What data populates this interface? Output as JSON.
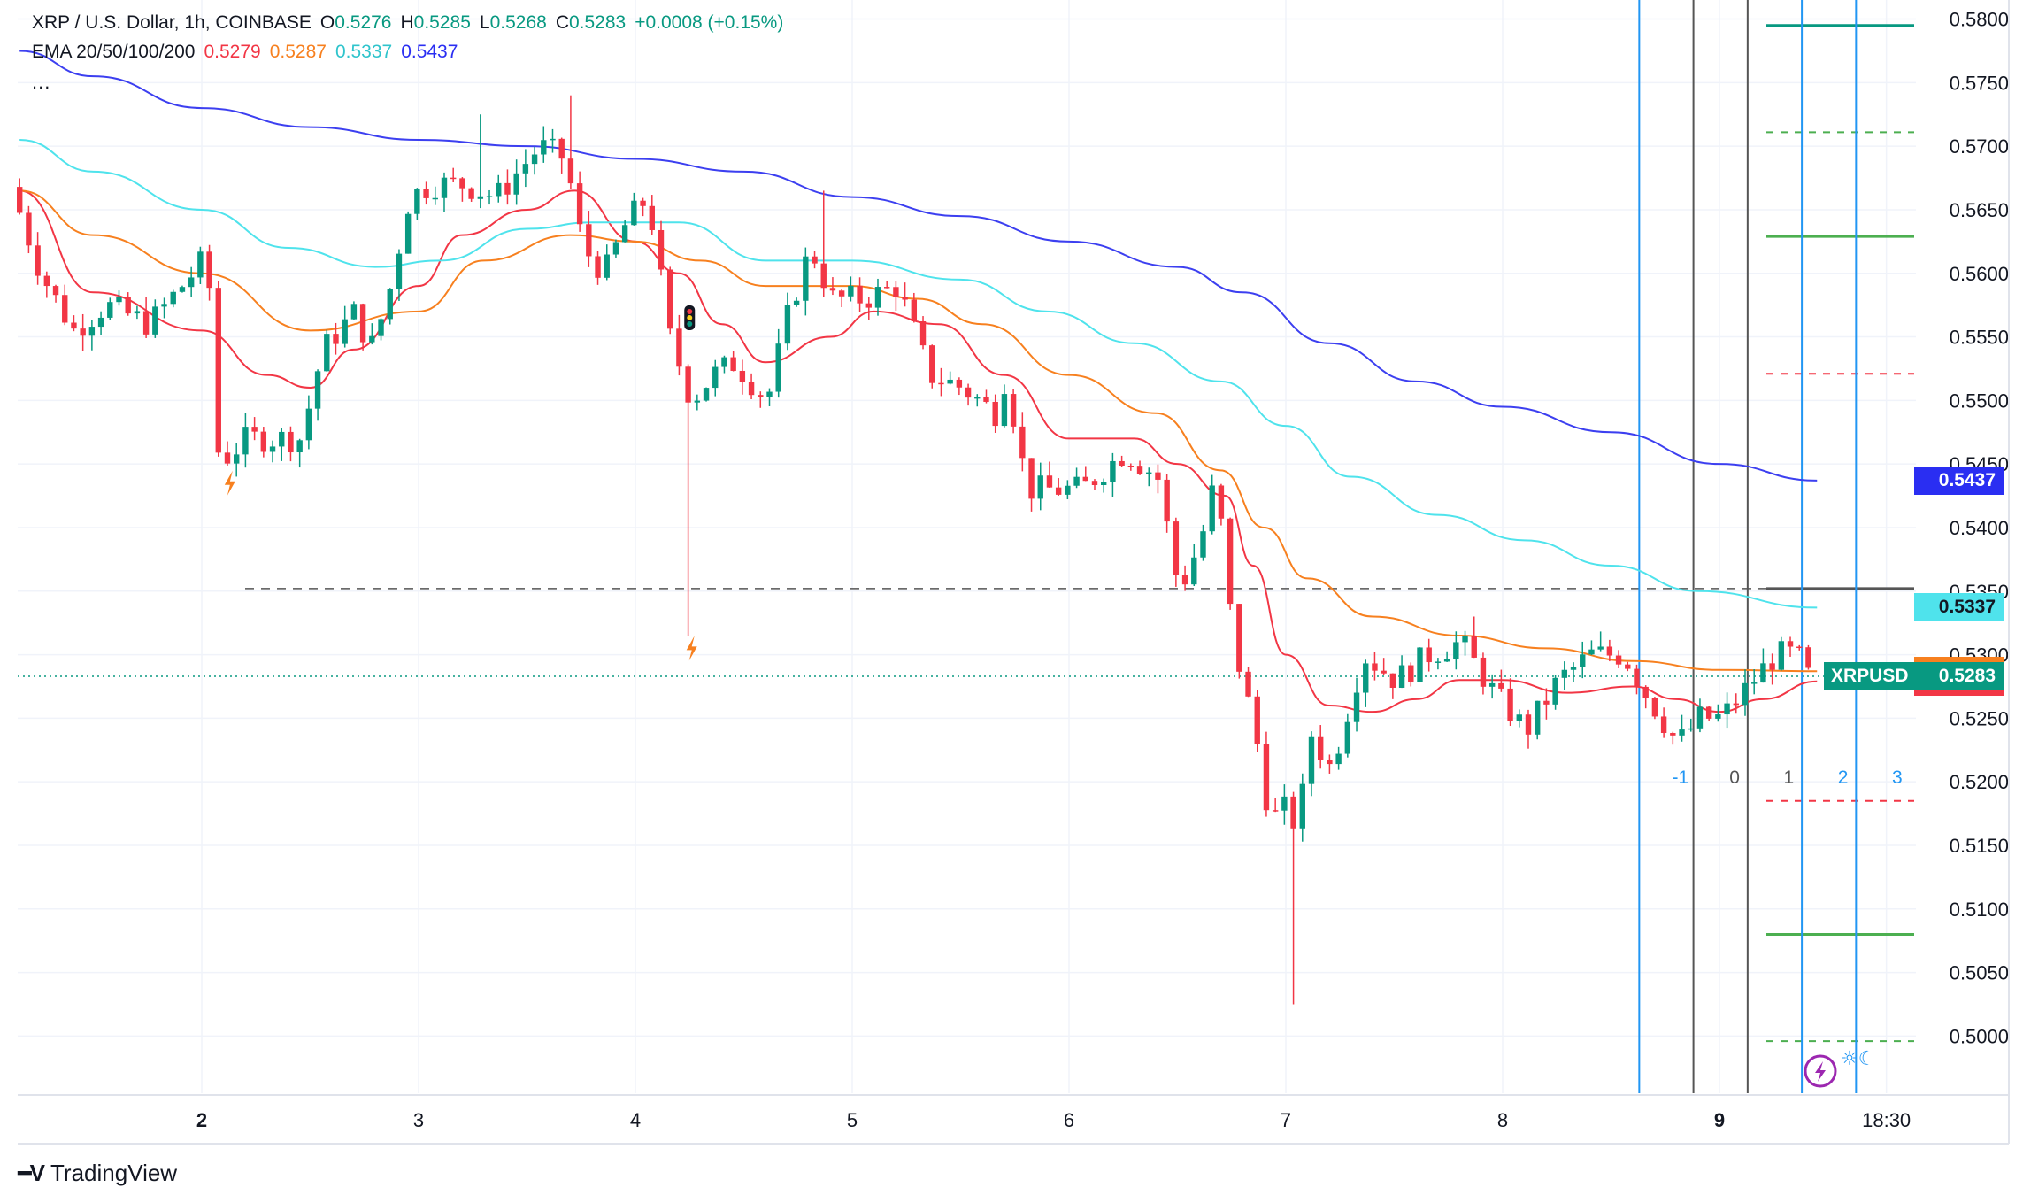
{
  "legend": {
    "title": "XRP / U.S. Dollar, 1h, COINBASE",
    "ohlc": [
      {
        "k": "O",
        "v": "0.5276"
      },
      {
        "k": "H",
        "v": "0.5285"
      },
      {
        "k": "L",
        "v": "0.5268"
      },
      {
        "k": "C",
        "v": "0.5283"
      }
    ],
    "change": "+0.0008 (+0.15%)",
    "ema_label": "EMA 20/50/100/200",
    "ema_values": [
      "0.5279",
      "0.5287",
      "0.5337",
      "0.5437"
    ],
    "more": "..."
  },
  "brand": "TradingView",
  "colors": {
    "up": "#089981",
    "down": "#f23645",
    "ema20": "#f23645",
    "ema50": "#f7801f",
    "ema100": "#4fe3ec",
    "ema200": "#3c3ff0",
    "vline_blue": "#2196f3",
    "vline_gray": "#555555",
    "level_green": "#4caf50",
    "level_red": "#f23645",
    "level_teal": "#089981"
  },
  "chart_data": {
    "type": "candlestick",
    "symbol": "XRPUSD",
    "timeframe": "1h",
    "ylim": [
      0.4955,
      0.5815
    ],
    "y_ticks": [
      "0.5800",
      "0.5750",
      "0.5700",
      "0.5650",
      "0.5600",
      "0.5550",
      "0.5500",
      "0.5450",
      "0.5400",
      "0.5350",
      "0.5300",
      "0.5250",
      "0.5200",
      "0.5150",
      "0.5100",
      "0.5050",
      "0.5000"
    ],
    "x_ticks": [
      {
        "label": "2",
        "day": 2,
        "bold": true
      },
      {
        "label": "3",
        "day": 3
      },
      {
        "label": "4",
        "day": 4
      },
      {
        "label": "5",
        "day": 5
      },
      {
        "label": "6",
        "day": 6
      },
      {
        "label": "7",
        "day": 7
      },
      {
        "label": "8",
        "day": 8
      },
      {
        "label": "9",
        "day": 9,
        "bold": true
      },
      {
        "label": "18:30",
        "day": 9.77
      }
    ],
    "x_range": [
      1.16,
      9.85
    ],
    "price_anchors": [
      [
        1.16,
        0.5668
      ],
      [
        1.3,
        0.56
      ],
      [
        1.45,
        0.5555
      ],
      [
        1.6,
        0.5575
      ],
      [
        1.8,
        0.556
      ],
      [
        1.95,
        0.559
      ],
      [
        2.05,
        0.561
      ],
      [
        2.1,
        0.557
      ],
      [
        2.12,
        0.545
      ],
      [
        2.25,
        0.547
      ],
      [
        2.4,
        0.547
      ],
      [
        2.5,
        0.547
      ],
      [
        2.6,
        0.554
      ],
      [
        2.75,
        0.557
      ],
      [
        2.82,
        0.554
      ],
      [
        2.9,
        0.558
      ],
      [
        3.0,
        0.566
      ],
      [
        3.1,
        0.567
      ],
      [
        3.25,
        0.567
      ],
      [
        3.4,
        0.566
      ],
      [
        3.5,
        0.568
      ],
      [
        3.6,
        0.57
      ],
      [
        3.72,
        0.569
      ],
      [
        3.8,
        0.562
      ],
      [
        3.9,
        0.56
      ],
      [
        4.0,
        0.564
      ],
      [
        4.1,
        0.566
      ],
      [
        4.2,
        0.555
      ],
      [
        4.3,
        0.55
      ],
      [
        4.4,
        0.552
      ],
      [
        4.5,
        0.553
      ],
      [
        4.6,
        0.551
      ],
      [
        4.65,
        0.55
      ],
      [
        4.75,
        0.557
      ],
      [
        4.85,
        0.562
      ],
      [
        4.95,
        0.558
      ],
      [
        5.1,
        0.558
      ],
      [
        5.25,
        0.559
      ],
      [
        5.4,
        0.552
      ],
      [
        5.55,
        0.551
      ],
      [
        5.7,
        0.549
      ],
      [
        5.75,
        0.552
      ],
      [
        5.85,
        0.543
      ],
      [
        5.95,
        0.543
      ],
      [
        6.1,
        0.543
      ],
      [
        6.3,
        0.546
      ],
      [
        6.45,
        0.544
      ],
      [
        6.55,
        0.535
      ],
      [
        6.65,
        0.539
      ],
      [
        6.72,
        0.544
      ],
      [
        6.8,
        0.531
      ],
      [
        6.9,
        0.524
      ],
      [
        6.97,
        0.517
      ],
      [
        7.05,
        0.518
      ],
      [
        7.1,
        0.516
      ],
      [
        7.15,
        0.524
      ],
      [
        7.25,
        0.521
      ],
      [
        7.4,
        0.53
      ],
      [
        7.55,
        0.528
      ],
      [
        7.7,
        0.53
      ],
      [
        7.85,
        0.531
      ],
      [
        8.0,
        0.527
      ],
      [
        8.15,
        0.524
      ],
      [
        8.3,
        0.528
      ],
      [
        8.45,
        0.53
      ],
      [
        8.6,
        0.53
      ],
      [
        8.7,
        0.527
      ],
      [
        8.85,
        0.523
      ],
      [
        8.95,
        0.525
      ],
      [
        9.05,
        0.525
      ],
      [
        9.15,
        0.527
      ],
      [
        9.3,
        0.53
      ],
      [
        9.4,
        0.53
      ],
      [
        9.45,
        0.5283
      ]
    ],
    "wick_spikes": [
      {
        "x": 3.3,
        "high": 0.5725
      },
      {
        "x": 3.72,
        "high": 0.574
      },
      {
        "x": 4.25,
        "low": 0.5315
      },
      {
        "x": 4.85,
        "high": 0.5665
      },
      {
        "x": 7.05,
        "low": 0.5025
      },
      {
        "x": 7.85,
        "high": 0.533
      }
    ],
    "ema": [
      {
        "name": "EMA 20",
        "value": "0.5279",
        "points": [
          [
            1.16,
            0.5665
          ],
          [
            1.5,
            0.5585
          ],
          [
            2.0,
            0.5555
          ],
          [
            2.3,
            0.552
          ],
          [
            2.5,
            0.551
          ],
          [
            2.7,
            0.554
          ],
          [
            3.0,
            0.559
          ],
          [
            3.2,
            0.563
          ],
          [
            3.5,
            0.565
          ],
          [
            3.72,
            0.5665
          ],
          [
            4.0,
            0.5625
          ],
          [
            4.2,
            0.56
          ],
          [
            4.4,
            0.556
          ],
          [
            4.6,
            0.553
          ],
          [
            4.9,
            0.555
          ],
          [
            5.1,
            0.557
          ],
          [
            5.4,
            0.556
          ],
          [
            5.7,
            0.552
          ],
          [
            6.0,
            0.547
          ],
          [
            6.3,
            0.547
          ],
          [
            6.5,
            0.545
          ],
          [
            6.72,
            0.5425
          ],
          [
            6.85,
            0.537
          ],
          [
            7.0,
            0.53
          ],
          [
            7.2,
            0.526
          ],
          [
            7.4,
            0.5255
          ],
          [
            7.6,
            0.5265
          ],
          [
            7.8,
            0.528
          ],
          [
            8.0,
            0.528
          ],
          [
            8.3,
            0.527
          ],
          [
            8.6,
            0.5275
          ],
          [
            8.8,
            0.5265
          ],
          [
            9.0,
            0.5255
          ],
          [
            9.2,
            0.5265
          ],
          [
            9.45,
            0.5279
          ]
        ]
      },
      {
        "name": "EMA 50",
        "value": "0.5287",
        "points": [
          [
            1.16,
            0.5665
          ],
          [
            1.5,
            0.563
          ],
          [
            2.0,
            0.56
          ],
          [
            2.5,
            0.5555
          ],
          [
            3.0,
            0.557
          ],
          [
            3.3,
            0.561
          ],
          [
            3.7,
            0.563
          ],
          [
            4.0,
            0.5625
          ],
          [
            4.3,
            0.561
          ],
          [
            4.6,
            0.559
          ],
          [
            5.0,
            0.559
          ],
          [
            5.3,
            0.558
          ],
          [
            5.6,
            0.556
          ],
          [
            6.0,
            0.552
          ],
          [
            6.4,
            0.549
          ],
          [
            6.7,
            0.5445
          ],
          [
            6.9,
            0.54
          ],
          [
            7.1,
            0.536
          ],
          [
            7.4,
            0.533
          ],
          [
            7.8,
            0.5315
          ],
          [
            8.2,
            0.5305
          ],
          [
            8.6,
            0.5295
          ],
          [
            9.0,
            0.5288
          ],
          [
            9.45,
            0.5287
          ]
        ]
      },
      {
        "name": "EMA 100",
        "value": "0.5337",
        "points": [
          [
            1.16,
            0.5705
          ],
          [
            1.5,
            0.568
          ],
          [
            2.0,
            0.565
          ],
          [
            2.4,
            0.562
          ],
          [
            2.8,
            0.5605
          ],
          [
            3.1,
            0.561
          ],
          [
            3.5,
            0.5635
          ],
          [
            3.8,
            0.564
          ],
          [
            4.2,
            0.564
          ],
          [
            4.6,
            0.561
          ],
          [
            5.0,
            0.561
          ],
          [
            5.5,
            0.5595
          ],
          [
            5.9,
            0.557
          ],
          [
            6.3,
            0.5545
          ],
          [
            6.7,
            0.5515
          ],
          [
            7.0,
            0.548
          ],
          [
            7.3,
            0.544
          ],
          [
            7.7,
            0.541
          ],
          [
            8.1,
            0.539
          ],
          [
            8.5,
            0.537
          ],
          [
            8.9,
            0.535
          ],
          [
            9.45,
            0.5337
          ]
        ]
      },
      {
        "name": "EMA 200",
        "value": "0.5437",
        "points": [
          [
            1.16,
            0.5775
          ],
          [
            1.5,
            0.5755
          ],
          [
            2.0,
            0.573
          ],
          [
            2.5,
            0.5715
          ],
          [
            3.0,
            0.5705
          ],
          [
            3.5,
            0.57
          ],
          [
            4.0,
            0.569
          ],
          [
            4.5,
            0.568
          ],
          [
            5.0,
            0.566
          ],
          [
            5.5,
            0.5645
          ],
          [
            6.0,
            0.5625
          ],
          [
            6.5,
            0.5605
          ],
          [
            6.8,
            0.5585
          ],
          [
            7.2,
            0.5545
          ],
          [
            7.6,
            0.5515
          ],
          [
            8.0,
            0.5495
          ],
          [
            8.5,
            0.5475
          ],
          [
            9.0,
            0.545
          ],
          [
            9.45,
            0.5437
          ]
        ]
      }
    ],
    "last_price": {
      "label": "XRPUSD",
      "value": "0.5283",
      "price": 0.5283
    },
    "price_badges": [
      {
        "value": "0.5437",
        "price": 0.5437,
        "color": "#2a2ef2"
      },
      {
        "value": "0.5337",
        "price": 0.5337,
        "color": "#4fe3ec",
        "text": "#131722"
      },
      {
        "value": "0.5287",
        "price": 0.5287,
        "color": "#f7801f"
      },
      {
        "value": "0.5279",
        "price": 0.5279,
        "color": "#f23645"
      }
    ],
    "dashed_level": {
      "price": 0.5352,
      "from_day": 2.2
    },
    "fib_time_lines": [
      {
        "day": 8.63,
        "label": "",
        "color": "#2196f3"
      },
      {
        "day": 8.88,
        "label": "-1",
        "color": "#555555"
      },
      {
        "day": 9.13,
        "label": "0",
        "color": "#555555"
      },
      {
        "day": 9.38,
        "label": "1",
        "color": "#2196f3"
      },
      {
        "day": 9.63,
        "label": "2",
        "color": "#2196f3"
      }
    ],
    "fib_time_labels": [
      {
        "day": 8.82,
        "label": "-1",
        "color": "#2196f3"
      },
      {
        "day": 9.07,
        "label": "0",
        "color": "#555555"
      },
      {
        "day": 9.32,
        "label": "1",
        "color": "#555555"
      },
      {
        "day": 9.57,
        "label": "2",
        "color": "#2196f3"
      },
      {
        "day": 9.82,
        "label": "3",
        "color": "#2196f3"
      }
    ],
    "levels": [
      {
        "price": 0.5795,
        "style": "solid",
        "color": "#089981"
      },
      {
        "price": 0.5711,
        "style": "dashed",
        "color": "#4caf50"
      },
      {
        "price": 0.5629,
        "style": "solid",
        "color": "#4caf50"
      },
      {
        "price": 0.5521,
        "style": "dashed",
        "color": "#f23645"
      },
      {
        "price": 0.5352,
        "style": "solid",
        "color": "#787b86"
      },
      {
        "price": 0.5185,
        "style": "dashed",
        "color": "#f23645"
      },
      {
        "price": 0.508,
        "style": "solid",
        "color": "#4caf50"
      },
      {
        "price": 0.4996,
        "style": "dashed",
        "color": "#4caf50"
      }
    ],
    "markers": [
      {
        "day": 2.13,
        "price": 0.5435,
        "kind": "flash"
      },
      {
        "day": 4.26,
        "price": 0.5305,
        "kind": "flash"
      },
      {
        "day": 4.25,
        "price": 0.5565,
        "kind": "traffic-light"
      }
    ]
  }
}
